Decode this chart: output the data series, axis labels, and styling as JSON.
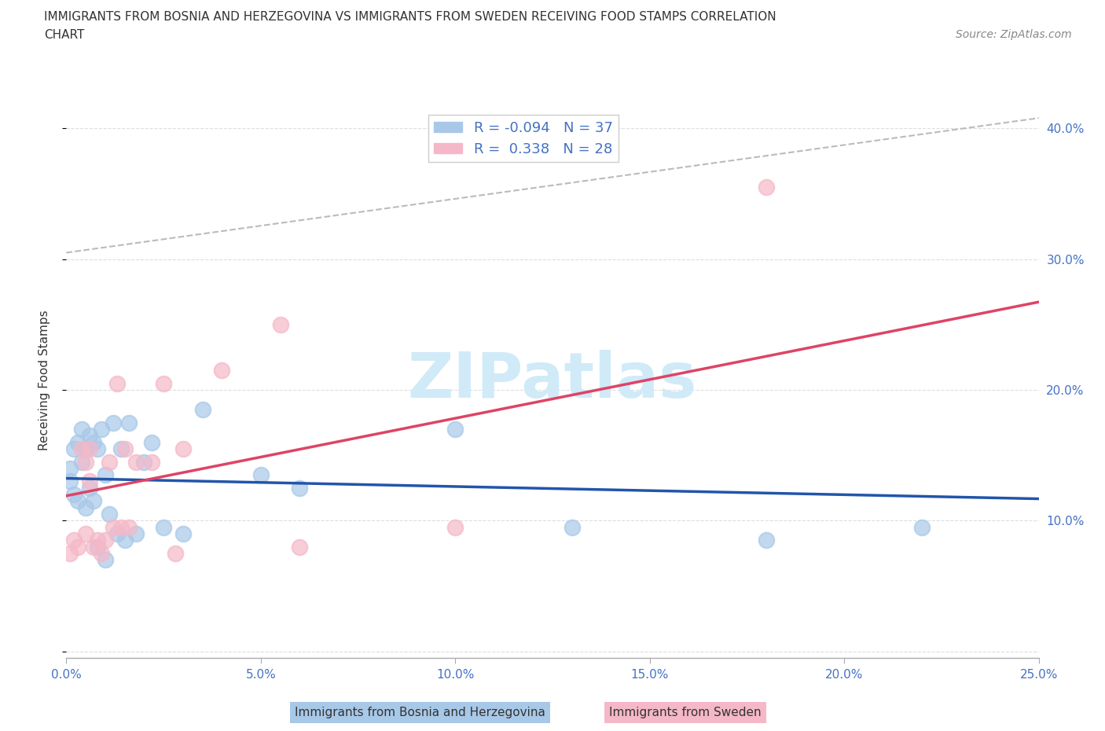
{
  "title_line1": "IMMIGRANTS FROM BOSNIA AND HERZEGOVINA VS IMMIGRANTS FROM SWEDEN RECEIVING FOOD STAMPS CORRELATION",
  "title_line2": "CHART",
  "source": "Source: ZipAtlas.com",
  "xlabel": "Immigrants from Bosnia and Herzegovina",
  "xlabel2": "Immigrants from Sweden",
  "ylabel": "Receiving Food Stamps",
  "r1": -0.094,
  "n1": 37,
  "r2": 0.338,
  "n2": 28,
  "color1": "#a8c8e8",
  "color2": "#f5b8c8",
  "color1_line": "#2255aa",
  "color2_line": "#dd4466",
  "watermark_color": "#d0eaf8",
  "xlim": [
    0.0,
    0.25
  ],
  "ylim": [
    -0.005,
    0.42
  ],
  "xticks": [
    0.0,
    0.05,
    0.1,
    0.15,
    0.2,
    0.25
  ],
  "xticklabels": [
    "0.0%",
    "5.0%",
    "10.0%",
    "15.0%",
    "20.0%",
    "25.0%"
  ],
  "yticks": [
    0.0,
    0.1,
    0.2,
    0.3,
    0.4
  ],
  "yticklabels": [
    "",
    "10.0%",
    "20.0%",
    "30.0%",
    "40.0%"
  ],
  "bosnia_x": [
    0.001,
    0.001,
    0.002,
    0.002,
    0.003,
    0.003,
    0.004,
    0.004,
    0.005,
    0.005,
    0.006,
    0.006,
    0.007,
    0.007,
    0.008,
    0.008,
    0.009,
    0.01,
    0.01,
    0.011,
    0.012,
    0.013,
    0.014,
    0.015,
    0.016,
    0.018,
    0.02,
    0.022,
    0.025,
    0.03,
    0.035,
    0.05,
    0.06,
    0.1,
    0.13,
    0.18,
    0.22
  ],
  "bosnia_y": [
    0.14,
    0.13,
    0.155,
    0.12,
    0.16,
    0.115,
    0.17,
    0.145,
    0.155,
    0.11,
    0.165,
    0.125,
    0.16,
    0.115,
    0.155,
    0.08,
    0.17,
    0.135,
    0.07,
    0.105,
    0.175,
    0.09,
    0.155,
    0.085,
    0.175,
    0.09,
    0.145,
    0.16,
    0.095,
    0.09,
    0.185,
    0.135,
    0.125,
    0.17,
    0.095,
    0.085,
    0.095
  ],
  "sweden_x": [
    0.001,
    0.002,
    0.003,
    0.004,
    0.005,
    0.005,
    0.006,
    0.006,
    0.007,
    0.008,
    0.009,
    0.01,
    0.011,
    0.012,
    0.013,
    0.014,
    0.015,
    0.016,
    0.018,
    0.022,
    0.025,
    0.028,
    0.03,
    0.04,
    0.055,
    0.06,
    0.1,
    0.18
  ],
  "sweden_y": [
    0.075,
    0.085,
    0.08,
    0.155,
    0.145,
    0.09,
    0.13,
    0.155,
    0.08,
    0.085,
    0.075,
    0.085,
    0.145,
    0.095,
    0.205,
    0.095,
    0.155,
    0.095,
    0.145,
    0.145,
    0.205,
    0.075,
    0.155,
    0.215,
    0.25,
    0.08,
    0.095,
    0.355
  ],
  "dash_line_x": [
    0.0,
    0.25
  ],
  "dash_line_y": [
    0.305,
    0.408
  ]
}
